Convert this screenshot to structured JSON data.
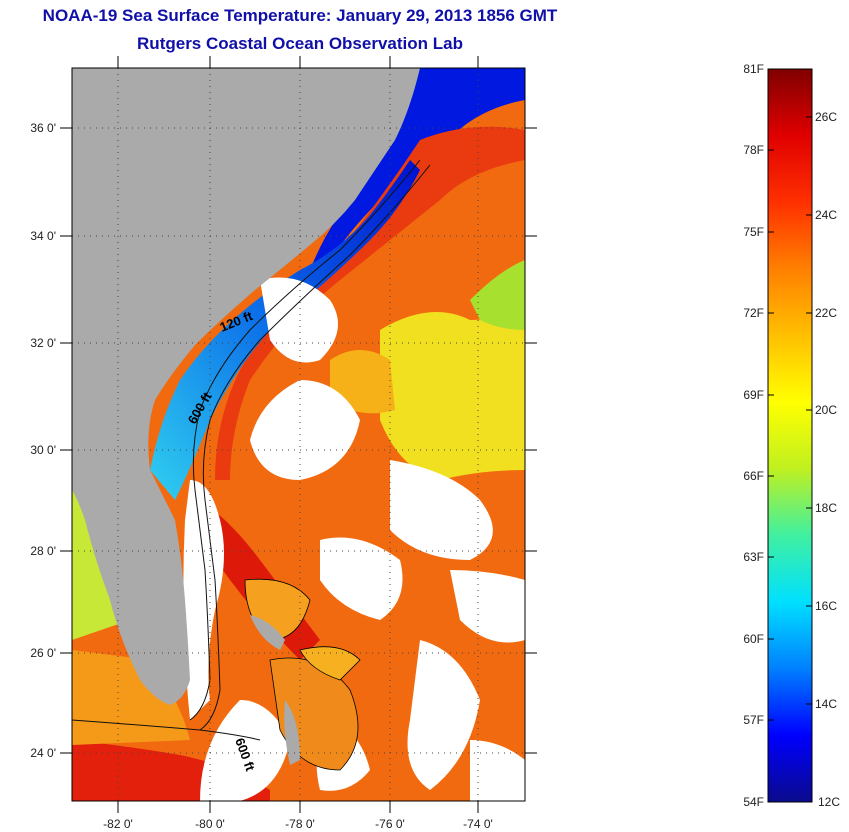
{
  "title": {
    "line1": "NOAA-19 Sea Surface Temperature:  January 29, 2013 1856 GMT",
    "line2": "Rutgers Coastal Ocean Observation Lab"
  },
  "map": {
    "latitude_labels": [
      "36 0'",
      "34 0'",
      "32 0'",
      "30 0'",
      "28 0'",
      "26 0'",
      "24 0'"
    ],
    "longitude_labels": [
      "-82 0'",
      "-80 0'",
      "-78 0'",
      "-76 0'",
      "-74 0'"
    ],
    "contour_labels": [
      "120 ft",
      "600 ft",
      "600 ft"
    ],
    "colors": {
      "land": "#aaaaaa",
      "cloud": "#ffffff",
      "cold_water": "#0010e0",
      "shelf_water": "#10b0f0",
      "gulf_stream": "#e8200c",
      "warm_orange": "#f26a10",
      "yellow_water": "#f4f020",
      "green_water": "#a0e030"
    }
  },
  "colorbar": {
    "fahrenheit_labels": [
      "81F",
      "78F",
      "75F",
      "72F",
      "69F",
      "66F",
      "63F",
      "60F",
      "57F",
      "54F"
    ],
    "celsius_labels": [
      "26C",
      "24C",
      "22C",
      "20C",
      "18C",
      "16C",
      "14C",
      "12C"
    ],
    "gradient_stops": [
      "#0a0a8c",
      "#0000ff",
      "#0080ff",
      "#00e0ff",
      "#40f0a0",
      "#c0f020",
      "#ffff00",
      "#ffc000",
      "#ff8000",
      "#ff3000",
      "#e00000",
      "#800000"
    ]
  }
}
